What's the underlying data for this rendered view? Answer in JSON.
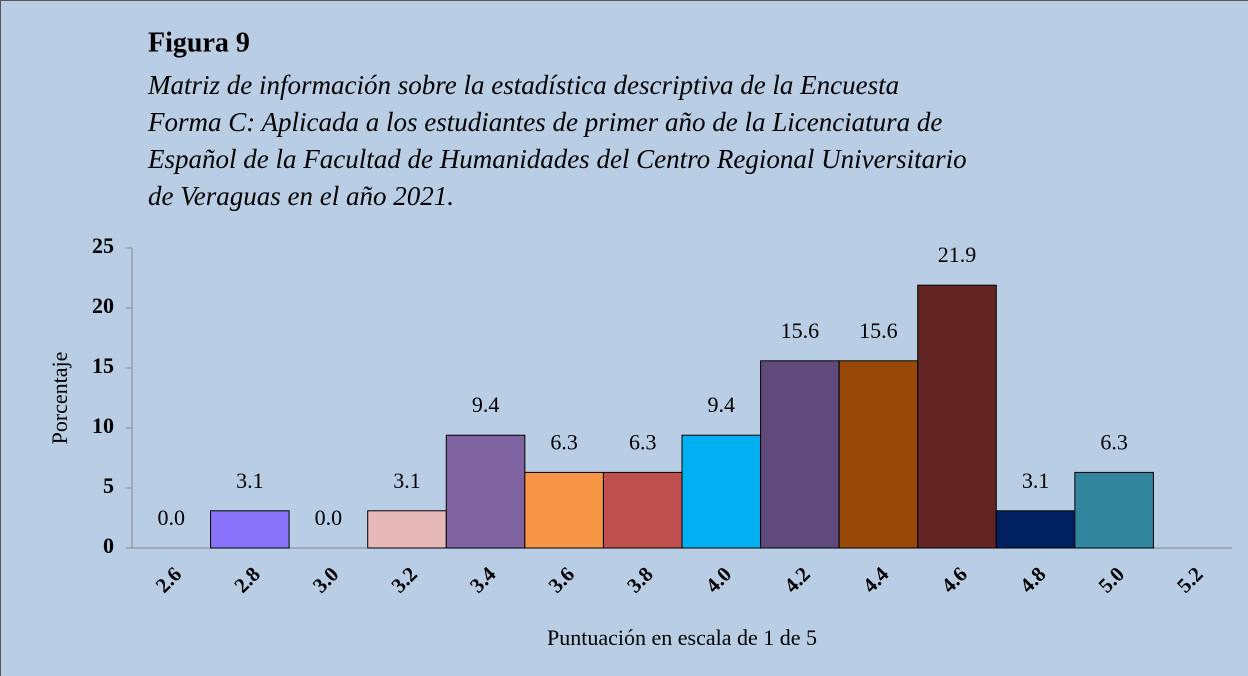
{
  "chart_data": {
    "type": "bar",
    "title": "Figura 9",
    "subtitle": [
      "Matriz de información sobre la estadística descriptiva de la Encuesta",
      "Forma C: Aplicada a los estudiantes de primer año de la Licenciatura de",
      "Español de la Facultad de Humanidades del Centro Regional Universitario",
      "de Veraguas en el año 2021."
    ],
    "x_label": "Puntuación en escala de 1 de 5",
    "y_label": "Porcentaje",
    "categories": [
      "2.6",
      "2.8",
      "3.0",
      "3.2",
      "3.4",
      "3.6",
      "3.8",
      "4.0",
      "4.2",
      "4.4",
      "4.6",
      "4.8",
      "5.0",
      "5.2"
    ],
    "values": [
      0,
      3.1,
      0,
      3.1,
      9.4,
      6.3,
      6.3,
      9.4,
      15.6,
      15.6,
      21.9,
      3.1,
      6.3,
      null
    ],
    "value_labels": [
      "0.0",
      "3.1",
      "0.0",
      "3.1",
      "9.4",
      "6.3",
      "6.3",
      "9.4",
      "15.6",
      "15.6",
      "21.9",
      "3.1",
      "6.3",
      null
    ],
    "colors": [
      "#8a74fb",
      "#8a74fb",
      "#8a74fb",
      "#e6b9b8",
      "#8064a2",
      "#f79646",
      "#c0504d",
      "#00b0f0",
      "#604a7b",
      "#984807",
      "#632523",
      "#002060",
      "#31859c",
      null
    ],
    "ylim": [
      0,
      25
    ],
    "yticks": [
      0,
      5,
      10,
      15,
      20,
      25
    ]
  }
}
